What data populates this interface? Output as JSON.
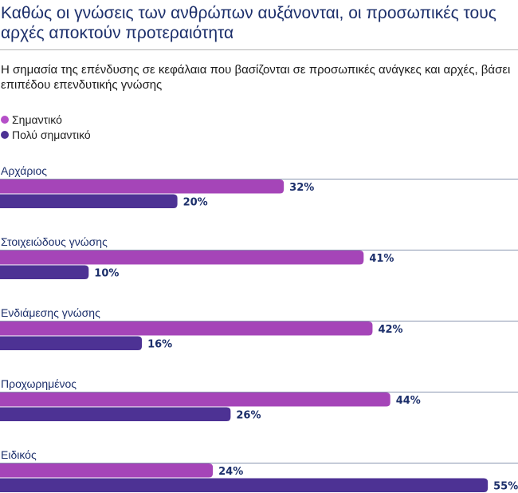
{
  "title": "Καθώς οι γνώσεις των ανθρώπων αυξάνονται, οι προσωπικές τους αρχές αποκτούν προτεραιότητα",
  "chart_data": {
    "type": "bar",
    "orientation": "horizontal",
    "title": "Η σημασία της επένδυσης σε κεφάλαια που βασίζονται σε προσωπικές ανάγκες και αρχές, βάσει επιπέδου επενδυτικής γνώσης",
    "categories": [
      "Αρχάριος",
      "Στοιχειώδους γνώσης",
      "Ενδιάμεσης γνώσης",
      "Προχωρημένος",
      "Ειδικός"
    ],
    "series": [
      {
        "name": "Σημαντικό",
        "color": "#a545b8",
        "values": [
          32,
          41,
          42,
          44,
          24
        ]
      },
      {
        "name": "Πολύ σημαντικό",
        "color": "#4d3294",
        "values": [
          20,
          10,
          16,
          26,
          55
        ]
      }
    ],
    "unit": "%",
    "xlim": [
      0,
      58
    ],
    "legend": "top-left",
    "grid": false
  }
}
